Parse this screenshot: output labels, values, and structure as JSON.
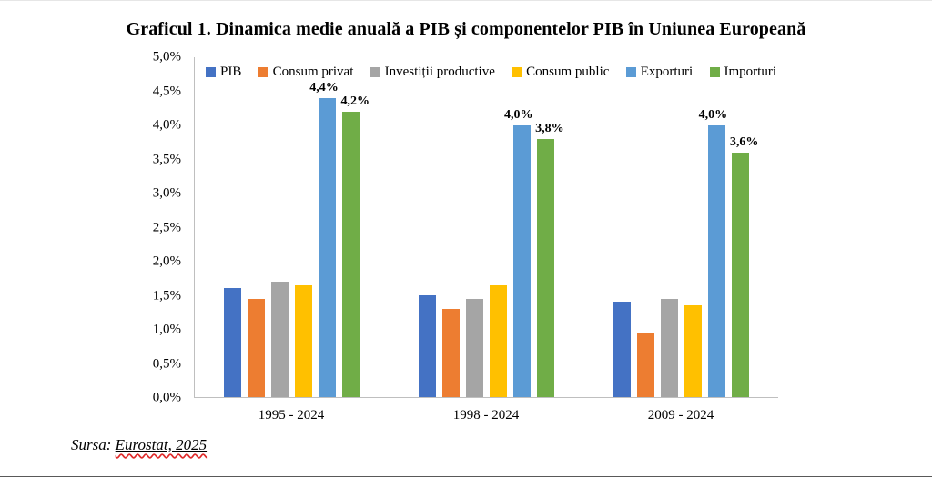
{
  "page": {
    "source_prefix": "Sursa: ",
    "source_link": "Eurostat, 2025"
  },
  "chart_data": {
    "type": "bar",
    "title": "Graficul 1. Dinamica medie anuală a PIB și componentelor PIB în Uniunea Europeană",
    "xlabel": "",
    "ylabel": "",
    "categories": [
      "1995 - 2024",
      "1998 - 2024",
      "2009 - 2024"
    ],
    "series": [
      {
        "name": "PIB",
        "color": "#4472C4",
        "values": [
          1.6,
          1.5,
          1.4
        ],
        "labels": null
      },
      {
        "name": "Consum privat",
        "color": "#ED7D31",
        "values": [
          1.45,
          1.3,
          0.95
        ],
        "labels": null
      },
      {
        "name": "Investiții productive",
        "color": "#A5A5A5",
        "values": [
          1.7,
          1.45,
          1.45
        ],
        "labels": null
      },
      {
        "name": "Consum public",
        "color": "#FFC000",
        "values": [
          1.65,
          1.65,
          1.35
        ],
        "labels": null
      },
      {
        "name": "Exporturi",
        "color": "#5B9BD5",
        "values": [
          4.4,
          4.0,
          4.0
        ],
        "labels": [
          "4,4%",
          "4,0%",
          "4,0%"
        ],
        "label_side": "left"
      },
      {
        "name": "Importuri",
        "color": "#70AD47",
        "values": [
          4.2,
          3.8,
          3.6
        ],
        "labels": [
          "4,2%",
          "3,8%",
          "3,6%"
        ],
        "label_side": "right"
      }
    ],
    "ylim": [
      0,
      5
    ],
    "ytick_step": 0.5,
    "ytick_labels": [
      "0,0%",
      "0,5%",
      "1,0%",
      "1,5%",
      "2,0%",
      "2,5%",
      "3,0%",
      "3,5%",
      "4,0%",
      "4,5%",
      "5,0%"
    ],
    "grid": false,
    "legend_position": "top-inside"
  }
}
